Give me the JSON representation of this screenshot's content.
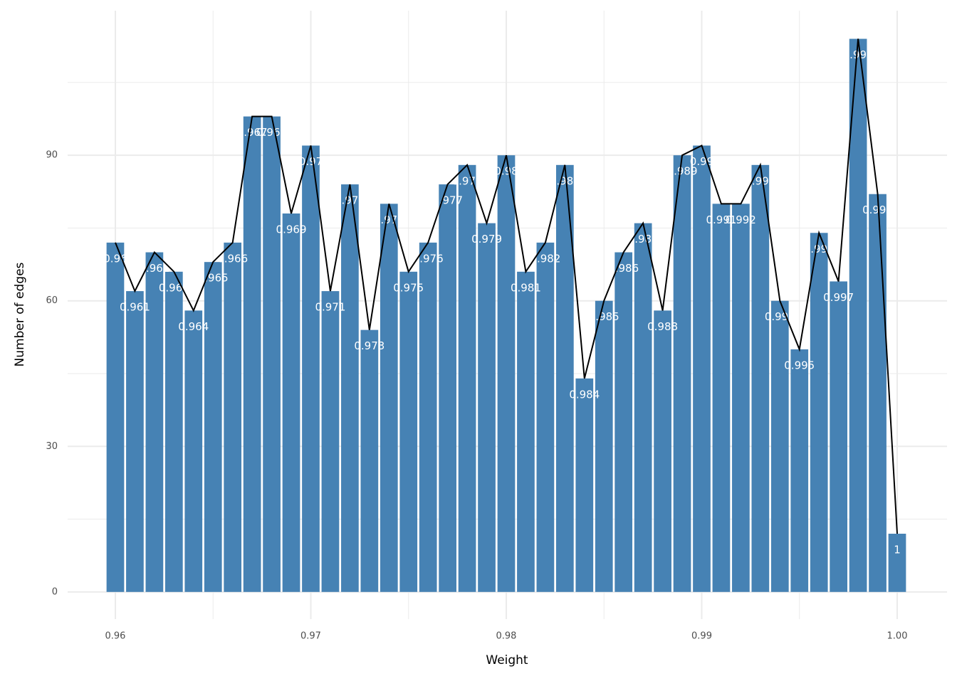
{
  "chart_data": {
    "type": "bar",
    "x_label": "Weight",
    "y_label": "Number of edges",
    "x": [
      0.96,
      0.961,
      0.962,
      0.963,
      0.964,
      0.965,
      0.966,
      0.967,
      0.968,
      0.969,
      0.97,
      0.971,
      0.972,
      0.973,
      0.974,
      0.975,
      0.976,
      0.977,
      0.978,
      0.979,
      0.98,
      0.981,
      0.982,
      0.983,
      0.984,
      0.985,
      0.986,
      0.987,
      0.988,
      0.989,
      0.99,
      0.991,
      0.992,
      0.993,
      0.994,
      0.995,
      0.996,
      0.997,
      0.998,
      0.999,
      1
    ],
    "values": [
      72,
      62,
      70,
      66,
      58,
      68,
      72,
      98,
      98,
      78,
      92,
      62,
      84,
      54,
      80,
      66,
      72,
      84,
      88,
      76,
      90,
      66,
      72,
      88,
      44,
      60,
      70,
      76,
      58,
      90,
      92,
      80,
      80,
      88,
      60,
      50,
      74,
      64,
      114,
      82,
      12
    ],
    "color": "#4682b4",
    "line_color": "#000000",
    "xlim": [
      0.95756,
      1.00255
    ],
    "ylim": [
      -5.6,
      119.8
    ],
    "xticks": [
      0.96,
      0.97,
      0.98,
      0.99,
      {
        "value": 1,
        "label": "1.00"
      }
    ],
    "yticks": [
      0,
      30,
      60,
      90
    ],
    "grid": true
  }
}
